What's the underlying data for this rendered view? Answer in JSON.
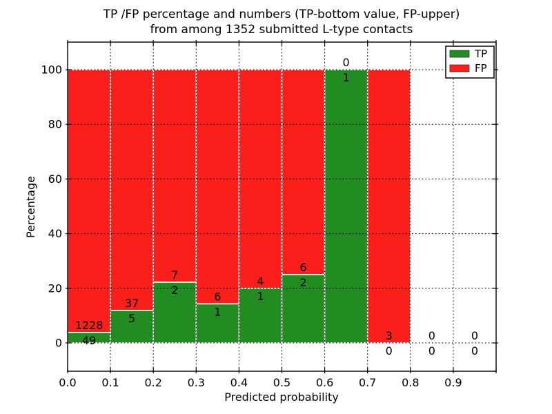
{
  "figure": {
    "background": "#ffffff"
  },
  "chart_data": {
    "type": "bar",
    "stacked": true,
    "title_line1": "TP /FP percentage and numbers (TP-bottom value, FP-upper)",
    "title_line2": "from among 1352 submitted L-type contacts",
    "xlabel": "Predicted probability",
    "ylabel": "Percentage",
    "total_submitted": 1352,
    "x_ticks": [
      "0.0",
      "0.1",
      "0.2",
      "0.3",
      "0.4",
      "0.5",
      "0.6",
      "0.7",
      "0.8",
      "0.9"
    ],
    "y_ticks": [
      0,
      20,
      40,
      60,
      80,
      100
    ],
    "xlim": [
      0.0,
      1.0
    ],
    "ylim": [
      -10.4,
      110.1
    ],
    "grid": "dotted",
    "legend": {
      "position": "upper right",
      "items": [
        {
          "label": "TP",
          "color": "#228B22"
        },
        {
          "label": "FP",
          "color": "#FA1F1A"
        }
      ]
    },
    "colors": {
      "tp": "#228B22",
      "fp": "#FA1F1A",
      "bar_edge": "#ffffff",
      "grid": "#000000",
      "text": "#000000"
    },
    "bins": [
      {
        "range": [
          0.0,
          0.1
        ],
        "tp": 49,
        "fp": 1228,
        "tp_pct": 3.84,
        "fp_pct": 96.16
      },
      {
        "range": [
          0.1,
          0.2
        ],
        "tp": 5,
        "fp": 37,
        "tp_pct": 11.9,
        "fp_pct": 88.1
      },
      {
        "range": [
          0.2,
          0.3
        ],
        "tp": 2,
        "fp": 7,
        "tp_pct": 22.22,
        "fp_pct": 77.78
      },
      {
        "range": [
          0.3,
          0.4
        ],
        "tp": 1,
        "fp": 6,
        "tp_pct": 14.29,
        "fp_pct": 85.71
      },
      {
        "range": [
          0.4,
          0.5
        ],
        "tp": 1,
        "fp": 4,
        "tp_pct": 20.0,
        "fp_pct": 80.0
      },
      {
        "range": [
          0.5,
          0.6
        ],
        "tp": 2,
        "fp": 6,
        "tp_pct": 25.0,
        "fp_pct": 75.0
      },
      {
        "range": [
          0.6,
          0.7
        ],
        "tp": 1,
        "fp": 0,
        "tp_pct": 100.0,
        "fp_pct": 0.0
      },
      {
        "range": [
          0.7,
          0.8
        ],
        "tp": 0,
        "fp": 3,
        "tp_pct": 0.0,
        "fp_pct": 100.0
      },
      {
        "range": [
          0.8,
          0.9
        ],
        "tp": 0,
        "fp": 0,
        "tp_pct": 0.0,
        "fp_pct": 0.0
      },
      {
        "range": [
          0.9,
          1.0
        ],
        "tp": 0,
        "fp": 0,
        "tp_pct": 0.0,
        "fp_pct": 0.0
      }
    ]
  }
}
